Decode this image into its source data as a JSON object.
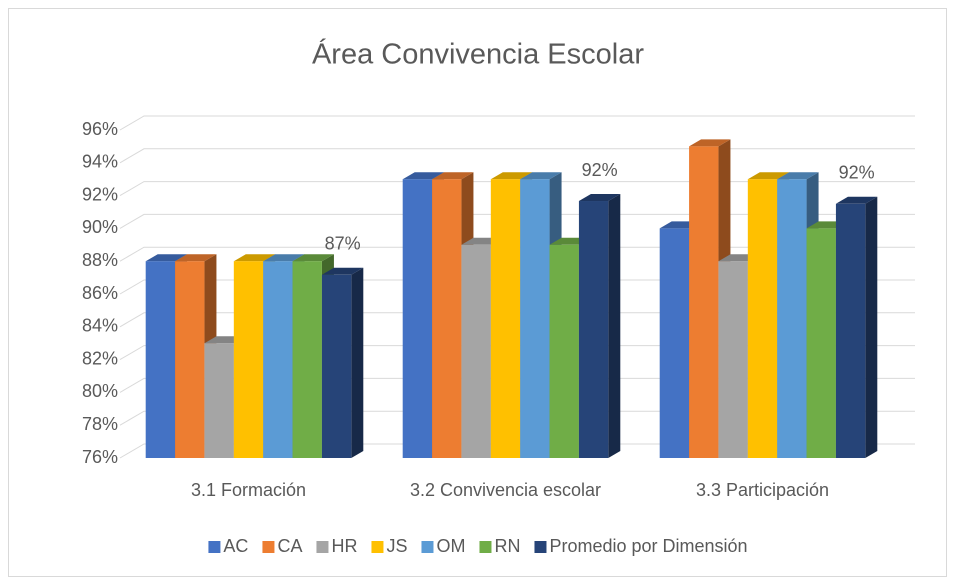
{
  "chart_data": {
    "type": "bar3d",
    "title": "Área Convivencia Escolar",
    "categories": [
      "3.1 Formación",
      "3.2 Convivencia escolar",
      "3.3 Participación"
    ],
    "series": [
      {
        "name": "AC",
        "color": "#4472c4",
        "values": [
          88,
          93,
          90
        ]
      },
      {
        "name": "CA",
        "color": "#ed7d31",
        "values": [
          88,
          93,
          95
        ]
      },
      {
        "name": "HR",
        "color": "#a5a5a5",
        "values": [
          83,
          89,
          88
        ]
      },
      {
        "name": "JS",
        "color": "#ffc000",
        "values": [
          88,
          93,
          93
        ]
      },
      {
        "name": "OM",
        "color": "#5b9bd5",
        "values": [
          88,
          93,
          93
        ]
      },
      {
        "name": "RN",
        "color": "#70ad47",
        "values": [
          88,
          89,
          90
        ]
      },
      {
        "name": "Promedio por Dimensión",
        "color": "#264478",
        "values": [
          87.17,
          91.67,
          91.5
        ],
        "value_labels": [
          "87%",
          "92%",
          "92%"
        ]
      }
    ],
    "ylim": [
      76,
      96
    ],
    "yticks": [
      {
        "value": 76,
        "label": "76%"
      },
      {
        "value": 78,
        "label": "78%"
      },
      {
        "value": 80,
        "label": "80%"
      },
      {
        "value": 82,
        "label": "82%"
      },
      {
        "value": 84,
        "label": "84%"
      },
      {
        "value": 86,
        "label": "86%"
      },
      {
        "value": 88,
        "label": "88%"
      },
      {
        "value": 90,
        "label": "90%"
      },
      {
        "value": 92,
        "label": "92%"
      },
      {
        "value": 94,
        "label": "94%"
      },
      {
        "value": 96,
        "label": "96%"
      }
    ],
    "grid": true,
    "legend": "bottom"
  }
}
